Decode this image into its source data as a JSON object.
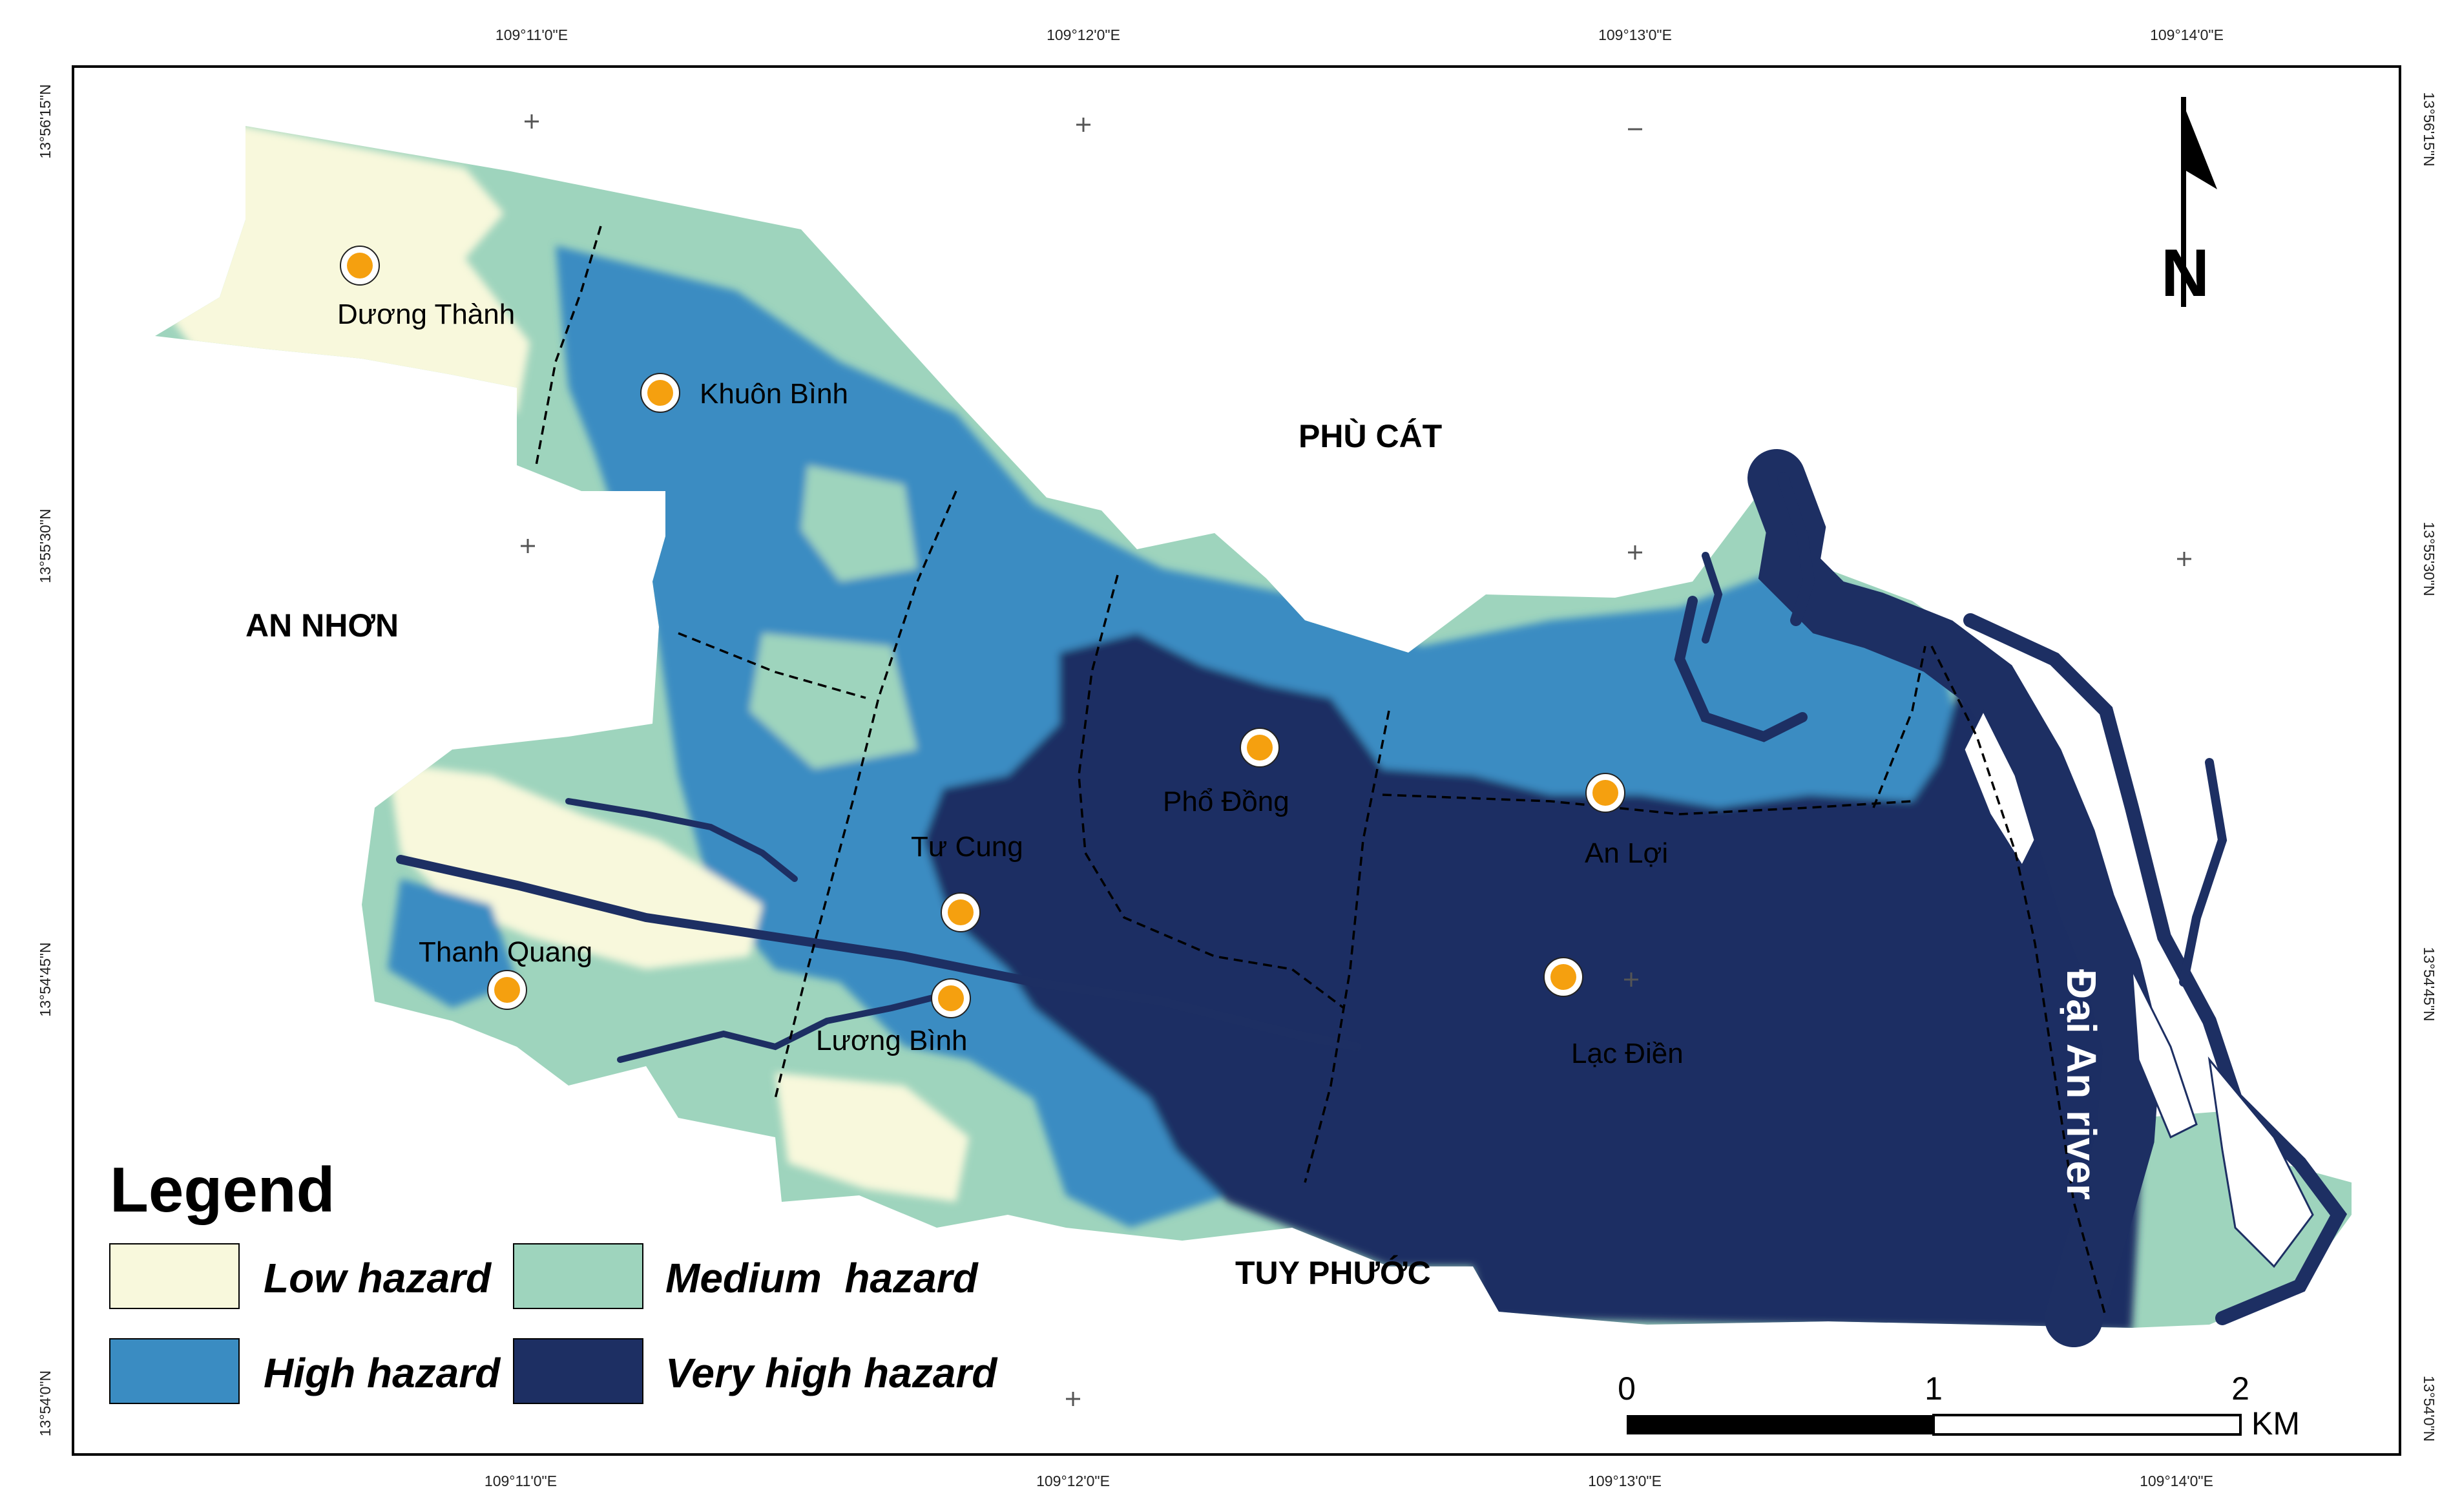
{
  "colors": {
    "low": "#f8f8dc",
    "medium": "#9ed4bd",
    "high": "#3a8cc2",
    "very_high": "#1d2f63",
    "settlement": "#f5a00f",
    "frame": "#000000"
  },
  "graticule": {
    "top": [
      "109°11'0\"E",
      "109°12'0\"E",
      "109°13'0\"E",
      "109°14'0\"E"
    ],
    "bottom": [
      "109°11'0\"E",
      "109°12'0\"E",
      "109°13'0\"E",
      "109°14'0\"E"
    ],
    "left": [
      "13°56'15\"N",
      "13°55'30\"N",
      "13°54'45\"N",
      "13°54'0\"N"
    ],
    "right": [
      "13°56'15\"N",
      "13°55'30\"N",
      "13°54'45\"N",
      "13°54'0\"N"
    ]
  },
  "districts": {
    "phu_cat": "PHÙ CÁT",
    "an_nhon": "AN NHƠN",
    "tuy_phuoc": "TUY PHƯỚC"
  },
  "places": {
    "duong_thanh": "Dương Thành",
    "khuon_binh": "Khuôn Bình",
    "tu_cung": "Tư Cung",
    "pho_dong": "Phổ Đồng",
    "an_loi": "An Lợi",
    "thanh_quang": "Thanh Quang",
    "luong_binh": "Lương Bình",
    "lac_dien": "Lạc Điền"
  },
  "river_label": "Đại An river",
  "north_arrow": {
    "letter": "N",
    "icon": "north-arrow-icon"
  },
  "legend": {
    "title": "Legend",
    "low": "Low hazard",
    "medium": "Medium  hazard",
    "high": "High hazard",
    "very_high": "Very high hazard"
  },
  "scale_bar": {
    "ticks": [
      "0",
      "1",
      "2"
    ],
    "unit": "KM"
  }
}
